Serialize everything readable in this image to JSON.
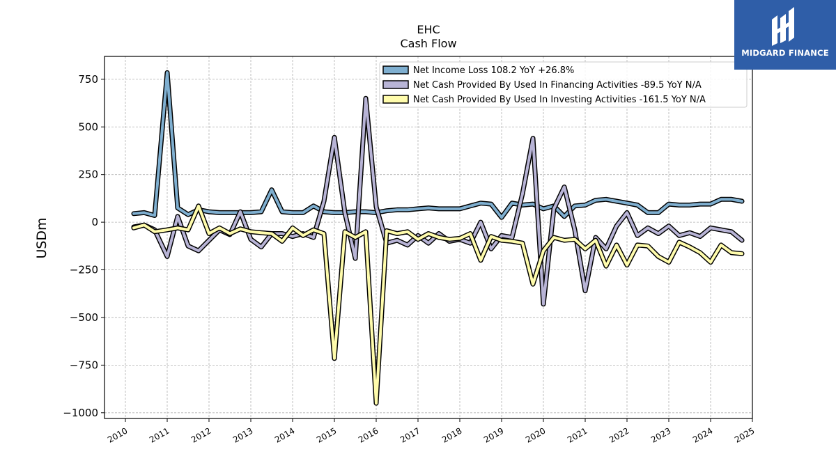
{
  "chart_data": {
    "type": "line",
    "title": "EHC",
    "subtitle": "Cash Flow",
    "ylabel": "USDm",
    "xlabel": "",
    "ylim": [
      -1030,
      870
    ],
    "xlim": [
      2009.5,
      2025.0
    ],
    "yticks": [
      750,
      500,
      250,
      0,
      -250,
      -500,
      -750,
      -1000
    ],
    "ytick_labels": [
      "750",
      "500",
      "250",
      "0",
      "−250",
      "−500",
      "−750",
      "−1000"
    ],
    "xticks": [
      2010,
      2011,
      2012,
      2013,
      2014,
      2015,
      2016,
      2017,
      2018,
      2019,
      2020,
      2021,
      2022,
      2023,
      2024,
      2025
    ],
    "xtick_labels": [
      "2010",
      "2011",
      "2012",
      "2013",
      "2014",
      "2015",
      "2016",
      "2017",
      "2018",
      "2019",
      "2020",
      "2021",
      "2022",
      "2023",
      "2024",
      "2025"
    ],
    "grid": true,
    "legend_position": "top-right",
    "x": [
      2010.2,
      2010.45,
      2010.7,
      2011.0,
      2011.25,
      2011.5,
      2011.75,
      2012.0,
      2012.25,
      2012.5,
      2012.75,
      2013.0,
      2013.25,
      2013.5,
      2013.75,
      2014.0,
      2014.25,
      2014.5,
      2014.75,
      2015.0,
      2015.25,
      2015.5,
      2015.75,
      2016.0,
      2016.25,
      2016.5,
      2016.75,
      2017.0,
      2017.25,
      2017.5,
      2017.75,
      2018.0,
      2018.25,
      2018.5,
      2018.75,
      2019.0,
      2019.25,
      2019.5,
      2019.75,
      2020.0,
      2020.25,
      2020.5,
      2020.75,
      2021.0,
      2021.25,
      2021.5,
      2021.75,
      2022.0,
      2022.25,
      2022.5,
      2022.75,
      2023.0,
      2023.25,
      2023.5,
      2023.75,
      2024.0,
      2024.25,
      2024.5,
      2024.75
    ],
    "series": [
      {
        "name": "Net Income Loss  108.2 YoY +26.8%",
        "color": "#7fafd0",
        "values": [
          45,
          50,
          35,
          785,
          75,
          40,
          65,
          55,
          50,
          50,
          50,
          50,
          55,
          170,
          55,
          50,
          50,
          85,
          55,
          50,
          50,
          55,
          55,
          50,
          60,
          65,
          65,
          70,
          75,
          70,
          70,
          70,
          85,
          100,
          95,
          25,
          100,
          90,
          95,
          70,
          85,
          30,
          85,
          90,
          115,
          120,
          110,
          100,
          90,
          50,
          50,
          95,
          90,
          90,
          95,
          95,
          120,
          120,
          110
        ]
      },
      {
        "name": "Net Cash Provided By Used In Financing Activities  -89.5 YoY N/A",
        "color": "#b8b4d6",
        "values": [
          -25,
          -15,
          -40,
          -180,
          30,
          -125,
          -150,
          -95,
          -40,
          -65,
          55,
          -90,
          -130,
          -60,
          -60,
          -75,
          -60,
          -80,
          110,
          445,
          50,
          -190,
          650,
          80,
          -110,
          -95,
          -120,
          -70,
          -110,
          -60,
          -100,
          -90,
          -110,
          0,
          -140,
          -70,
          -80,
          150,
          440,
          -430,
          70,
          185,
          -40,
          -360,
          -80,
          -140,
          -20,
          50,
          -70,
          -30,
          -60,
          -20,
          -70,
          -55,
          -75,
          -30,
          -40,
          -50,
          -95
        ]
      },
      {
        "name": "Net Cash Provided By Used In Investing Activities  -161.5 YoY N/A",
        "color": "#fffcac",
        "values": [
          -30,
          -15,
          -50,
          -40,
          -30,
          -40,
          85,
          -60,
          -30,
          -60,
          -35,
          -50,
          -55,
          -60,
          -100,
          -30,
          -70,
          -40,
          -60,
          -715,
          -50,
          -80,
          -50,
          -950,
          -45,
          -60,
          -50,
          -90,
          -60,
          -80,
          -90,
          -85,
          -60,
          -200,
          -75,
          -95,
          -100,
          -110,
          -325,
          -150,
          -80,
          -95,
          -90,
          -140,
          -95,
          -230,
          -120,
          -225,
          -120,
          -125,
          -180,
          -210,
          -105,
          -130,
          -160,
          -210,
          -120,
          -160,
          -165
        ]
      }
    ]
  },
  "logo": {
    "text": "MIDGARD FINANCE",
    "background": "#2f5ea8"
  }
}
